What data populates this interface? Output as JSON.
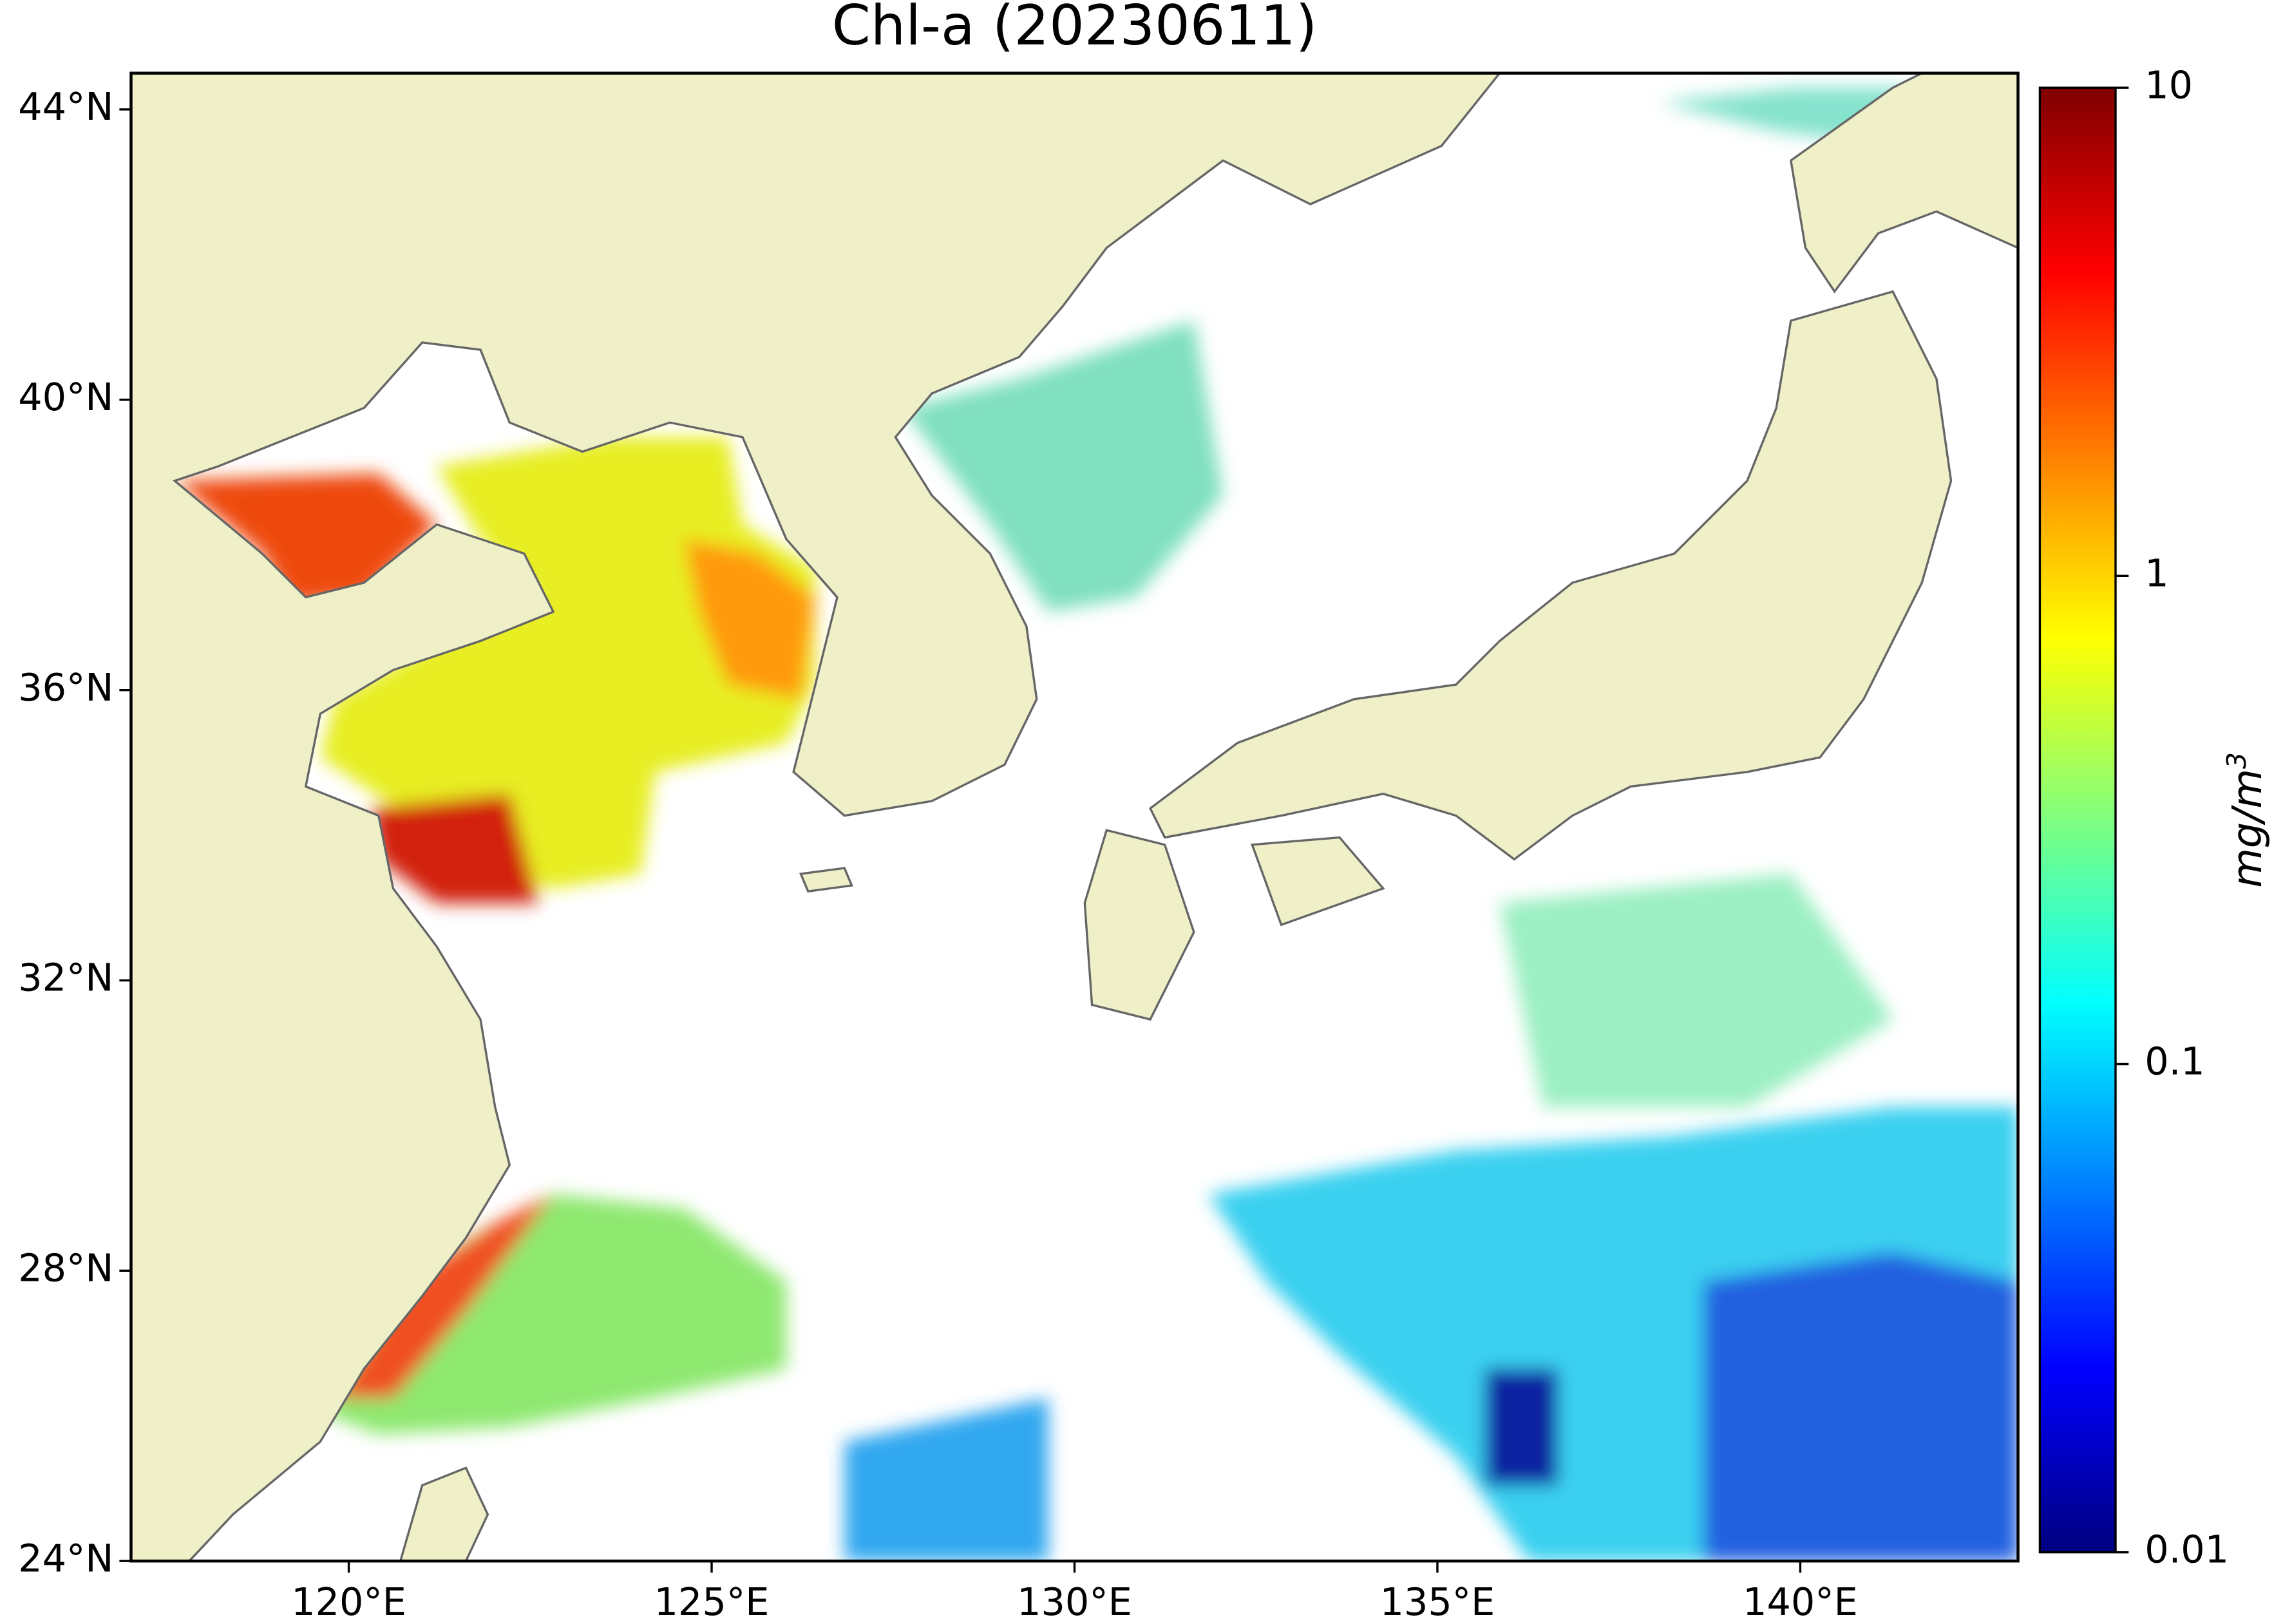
{
  "chart_data": {
    "type": "map",
    "title": "Chl-a (20230611)",
    "xlim": [
      117,
      143
    ],
    "ylim": [
      24,
      44.5
    ],
    "xticks": [
      {
        "value": 120,
        "label": "120°E"
      },
      {
        "value": 125,
        "label": "125°E"
      },
      {
        "value": 130,
        "label": "130°E"
      },
      {
        "value": 135,
        "label": "135°E"
      },
      {
        "value": 140,
        "label": "140°E"
      }
    ],
    "yticks": [
      {
        "value": 24,
        "label": "24°N"
      },
      {
        "value": 28,
        "label": "28°N"
      },
      {
        "value": 32,
        "label": "32°N"
      },
      {
        "value": 36,
        "label": "36°N"
      },
      {
        "value": 40,
        "label": "40°N"
      },
      {
        "value": 44,
        "label": "44°N"
      }
    ],
    "colorbar": {
      "scale": "log",
      "colormap": "jet",
      "lim": [
        0.01,
        10
      ],
      "ticks": [
        0.01,
        0.1,
        1,
        10
      ],
      "label": "mg/m",
      "label_sup": "3"
    },
    "land_color": "#eff0c8"
  }
}
